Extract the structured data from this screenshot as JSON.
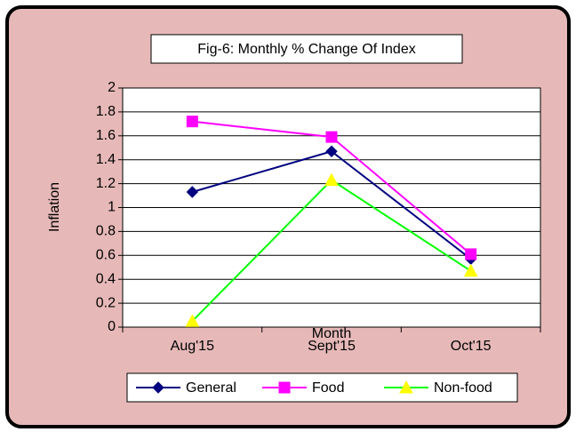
{
  "chart_data": {
    "type": "line",
    "title": "Fig-6: Monthly % Change Of Index",
    "xlabel": "Month",
    "ylabel": "Inflation",
    "categories": [
      "Aug'15",
      "Sept'15",
      "Oct'15"
    ],
    "series": [
      {
        "name": "General",
        "color": "#000080",
        "marker": "diamond",
        "marker_color": "#000080",
        "values": [
          1.13,
          1.47,
          0.57
        ]
      },
      {
        "name": "Food",
        "color": "#ff00ff",
        "marker": "square",
        "marker_color": "#ff00ff",
        "values": [
          1.72,
          1.59,
          0.61
        ]
      },
      {
        "name": "Non-food",
        "color": "#00ff00",
        "marker": "triangle",
        "marker_color": "#ffff00",
        "values": [
          0.05,
          1.23,
          0.47
        ]
      }
    ],
    "ylim": [
      0,
      2
    ],
    "yticks": [
      0,
      0.2,
      0.4,
      0.6,
      0.8,
      1,
      1.2,
      1.4,
      1.6,
      1.8,
      2
    ],
    "grid": true,
    "legend": "bottom"
  }
}
